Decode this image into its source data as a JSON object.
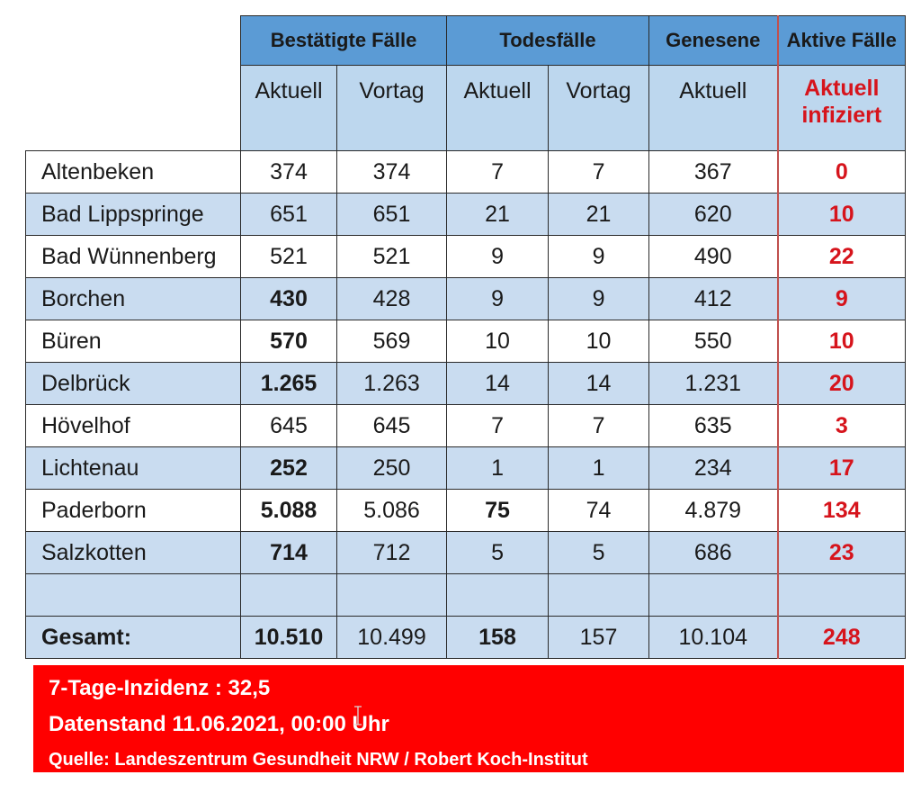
{
  "header": {
    "groups": [
      "Bestätigte Fälle",
      "Todesfälle",
      "Genesene",
      "Aktive Fälle"
    ],
    "sub": [
      "Aktuell",
      "Vortag",
      "Aktuell",
      "Vortag",
      "Aktuell"
    ],
    "active_sub_line1": "Aktuell",
    "active_sub_line2": "infiziert"
  },
  "rows": [
    {
      "name": "Altenbeken",
      "cases_now": "374",
      "cases_prev": "374",
      "deaths_now": "7",
      "deaths_prev": "7",
      "recovered": "367",
      "active": "0"
    },
    {
      "name": "Bad Lippspringe",
      "cases_now": "651",
      "cases_prev": "651",
      "deaths_now": "21",
      "deaths_prev": "21",
      "recovered": "620",
      "active": "10"
    },
    {
      "name": "Bad Wünnenberg",
      "cases_now": "521",
      "cases_prev": "521",
      "deaths_now": "9",
      "deaths_prev": "9",
      "recovered": "490",
      "active": "22"
    },
    {
      "name": "Borchen",
      "cases_now": "430",
      "cases_prev": "428",
      "deaths_now": "9",
      "deaths_prev": "9",
      "recovered": "412",
      "active": "9"
    },
    {
      "name": "Büren",
      "cases_now": "570",
      "cases_prev": "569",
      "deaths_now": "10",
      "deaths_prev": "10",
      "recovered": "550",
      "active": "10"
    },
    {
      "name": "Delbrück",
      "cases_now": "1.265",
      "cases_prev": "1.263",
      "deaths_now": "14",
      "deaths_prev": "14",
      "recovered": "1.231",
      "active": "20"
    },
    {
      "name": "Hövelhof",
      "cases_now": "645",
      "cases_prev": "645",
      "deaths_now": "7",
      "deaths_prev": "7",
      "recovered": "635",
      "active": "3"
    },
    {
      "name": "Lichtenau",
      "cases_now": "252",
      "cases_prev": "250",
      "deaths_now": "1",
      "deaths_prev": "1",
      "recovered": "234",
      "active": "17"
    },
    {
      "name": "Paderborn",
      "cases_now": "5.088",
      "cases_prev": "5.086",
      "deaths_now": "75",
      "deaths_prev": "74",
      "recovered": "4.879",
      "active": "134"
    },
    {
      "name": "Salzkotten",
      "cases_now": "714",
      "cases_prev": "712",
      "deaths_now": "5",
      "deaths_prev": "5",
      "recovered": "686",
      "active": "23"
    }
  ],
  "total": {
    "name": "Gesamt:",
    "cases_now": "10.510",
    "cases_prev": "10.499",
    "deaths_now": "158",
    "deaths_prev": "157",
    "recovered": "10.104",
    "active": "248"
  },
  "footer": {
    "incidence": "7-Tage-Inzidenz : 32,5",
    "date": "Datenstand 11.06.2021, 00:00 Uhr",
    "source": "Quelle: Landeszentrum Gesundheit NRW / Robert Koch-Institut"
  },
  "colors": {
    "header_blue": "#5b9bd5",
    "subheader_blue": "#bdd7ee",
    "row_blue": "#c9dcf0",
    "active_red": "#d6141c",
    "footer_red": "#ff0000"
  }
}
